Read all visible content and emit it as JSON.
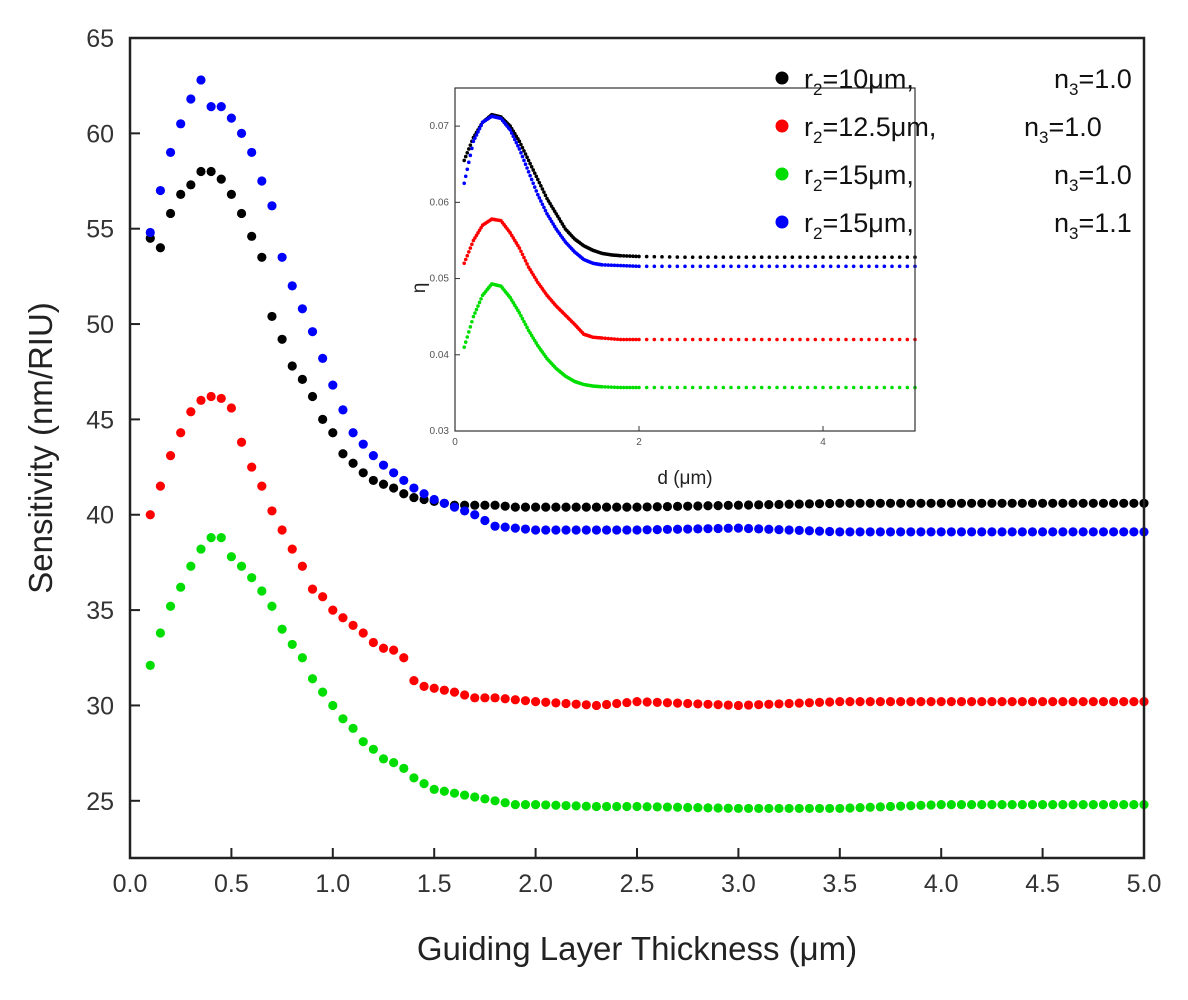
{
  "chart_data": [
    {
      "type": "scatter",
      "title": "",
      "xlabel": "Guiding Layer Thickness (μm)",
      "ylabel": "Sensitivity (nm/RIU)",
      "xlim": [
        0.0,
        5.0
      ],
      "ylim": [
        22,
        65
      ],
      "xticks": [
        "0.0",
        "0.5",
        "1.0",
        "1.5",
        "2.0",
        "2.5",
        "3.0",
        "3.5",
        "4.0",
        "4.5",
        "5.0"
      ],
      "yticks": [
        "25",
        "30",
        "35",
        "40",
        "45",
        "50",
        "55",
        "60",
        "65"
      ],
      "legend_position": "top-right",
      "series": [
        {
          "name": "r2=10μm, n3=1.0",
          "label_parts": {
            "r": "r",
            "r_sub": "2",
            "r_val": "=10μm,",
            "n": "n",
            "n_sub": "3",
            "n_val": "=1.0"
          },
          "color": "#000000",
          "x": [
            0.1,
            0.15,
            0.2,
            0.25,
            0.3,
            0.35,
            0.4,
            0.45,
            0.5,
            0.55,
            0.6,
            0.65,
            0.7,
            0.75,
            0.8,
            0.85,
            0.9,
            0.95,
            1.0,
            1.05,
            1.1,
            1.15,
            1.2,
            1.25,
            1.3,
            1.35,
            1.4,
            1.45,
            1.5,
            1.6,
            1.7,
            1.8,
            1.9,
            2.0,
            2.5,
            3.0,
            3.5,
            4.0,
            4.5,
            5.0
          ],
          "y": [
            54.5,
            54.0,
            55.8,
            56.8,
            57.3,
            58.0,
            58.0,
            57.6,
            56.8,
            55.8,
            54.6,
            53.5,
            50.4,
            49.2,
            47.8,
            47.1,
            46.2,
            45.0,
            44.3,
            43.2,
            42.7,
            42.2,
            41.8,
            41.6,
            41.4,
            41.1,
            40.9,
            40.8,
            40.7,
            40.5,
            40.5,
            40.5,
            40.4,
            40.4,
            40.4,
            40.5,
            40.6,
            40.6,
            40.6,
            40.6
          ]
        },
        {
          "name": "r2=12.5μm, n3=1.0",
          "label_parts": {
            "r": "r",
            "r_sub": "2",
            "r_val": "=12.5μm,",
            "n": "n",
            "n_sub": "3",
            "n_val": "=1.0"
          },
          "color": "#ff0000",
          "x": [
            0.1,
            0.15,
            0.2,
            0.25,
            0.3,
            0.35,
            0.4,
            0.45,
            0.5,
            0.55,
            0.6,
            0.65,
            0.7,
            0.75,
            0.8,
            0.85,
            0.9,
            0.95,
            1.0,
            1.05,
            1.1,
            1.15,
            1.2,
            1.25,
            1.3,
            1.35,
            1.4,
            1.45,
            1.5,
            1.6,
            1.7,
            1.8,
            1.9,
            2.0,
            2.3,
            2.5,
            3.0,
            3.5,
            4.0,
            4.5,
            5.0
          ],
          "y": [
            40.0,
            41.5,
            43.1,
            44.3,
            45.4,
            46.0,
            46.2,
            46.1,
            45.6,
            43.8,
            42.5,
            41.5,
            40.2,
            39.2,
            38.2,
            37.3,
            36.1,
            35.7,
            35.0,
            34.6,
            34.2,
            33.8,
            33.3,
            33.0,
            32.9,
            32.5,
            31.3,
            31.0,
            30.9,
            30.7,
            30.4,
            30.4,
            30.3,
            30.2,
            30.0,
            30.2,
            30.0,
            30.2,
            30.2,
            30.2,
            30.2
          ]
        },
        {
          "name": "r2=15μm, n3=1.0",
          "label_parts": {
            "r": "r",
            "r_sub": "2",
            "r_val": "=15μm,",
            "n": "n",
            "n_sub": "3",
            "n_val": "=1.0"
          },
          "color": "#00dd00",
          "x": [
            0.1,
            0.15,
            0.2,
            0.25,
            0.3,
            0.35,
            0.4,
            0.45,
            0.5,
            0.55,
            0.6,
            0.65,
            0.7,
            0.75,
            0.8,
            0.85,
            0.9,
            0.95,
            1.0,
            1.05,
            1.1,
            1.15,
            1.2,
            1.25,
            1.3,
            1.35,
            1.4,
            1.45,
            1.5,
            1.6,
            1.7,
            1.8,
            1.9,
            2.0,
            2.3,
            2.5,
            3.0,
            3.5,
            4.0,
            4.5,
            5.0
          ],
          "y": [
            32.1,
            33.8,
            35.2,
            36.2,
            37.3,
            38.2,
            38.8,
            38.8,
            37.8,
            37.3,
            36.7,
            36.0,
            35.2,
            34.0,
            33.2,
            32.5,
            31.4,
            30.7,
            30.0,
            29.3,
            28.8,
            28.1,
            27.7,
            27.2,
            27.0,
            26.7,
            26.2,
            25.9,
            25.6,
            25.4,
            25.2,
            25.0,
            24.8,
            24.8,
            24.7,
            24.7,
            24.6,
            24.6,
            24.8,
            24.8,
            24.8
          ]
        },
        {
          "name": "r2=15μm, n3=1.1",
          "label_parts": {
            "r": "r",
            "r_sub": "2",
            "r_val": "=15μm,",
            "n": "n",
            "n_sub": "3",
            "n_val": "=1.1"
          },
          "color": "#0000ff",
          "x": [
            0.1,
            0.15,
            0.2,
            0.25,
            0.3,
            0.35,
            0.4,
            0.45,
            0.5,
            0.55,
            0.6,
            0.65,
            0.7,
            0.75,
            0.8,
            0.85,
            0.9,
            0.95,
            1.0,
            1.05,
            1.1,
            1.15,
            1.2,
            1.25,
            1.3,
            1.35,
            1.4,
            1.45,
            1.5,
            1.6,
            1.7,
            1.8,
            1.9,
            2.0,
            2.5,
            3.0,
            3.5,
            4.0,
            4.5,
            5.0
          ],
          "y": [
            54.8,
            57.0,
            59.0,
            60.5,
            61.8,
            62.8,
            61.4,
            61.4,
            60.8,
            60.0,
            59.0,
            57.5,
            56.2,
            53.5,
            52.0,
            50.8,
            49.6,
            48.2,
            46.8,
            45.5,
            44.3,
            43.7,
            43.1,
            42.6,
            42.2,
            41.8,
            41.4,
            41.1,
            40.8,
            40.4,
            40.0,
            39.4,
            39.3,
            39.2,
            39.2,
            39.3,
            39.1,
            39.1,
            39.1,
            39.1
          ]
        }
      ]
    },
    {
      "type": "scatter",
      "title": "",
      "xlabel": "d (μm)",
      "ylabel": "η",
      "xlim": [
        0,
        5
      ],
      "ylim": [
        0.03,
        0.075
      ],
      "xticks": [
        "0",
        "2",
        "4"
      ],
      "yticks": [
        "0.03",
        "0.04",
        "0.05",
        "0.06",
        "0.07"
      ],
      "legend_position": "none",
      "series": [
        {
          "name": "r2=10μm, n3=1.0",
          "color": "#000000",
          "x": [
            0.1,
            0.2,
            0.3,
            0.4,
            0.5,
            0.6,
            0.7,
            0.8,
            0.9,
            1.0,
            1.1,
            1.2,
            1.3,
            1.4,
            1.5,
            1.6,
            1.7,
            1.8,
            2.0,
            2.5,
            3.0,
            3.5,
            4.0,
            4.5,
            5.0
          ],
          "y": [
            0.0655,
            0.0685,
            0.0705,
            0.0715,
            0.0712,
            0.07,
            0.068,
            0.0655,
            0.063,
            0.0605,
            0.0585,
            0.0565,
            0.0552,
            0.0543,
            0.0537,
            0.0533,
            0.0531,
            0.053,
            0.0529,
            0.0528,
            0.0528,
            0.0528,
            0.0528,
            0.0528,
            0.0528
          ]
        },
        {
          "name": "r2=12.5μm, n3=1.0",
          "color": "#ff0000",
          "x": [
            0.1,
            0.2,
            0.3,
            0.4,
            0.5,
            0.6,
            0.7,
            0.8,
            0.9,
            1.0,
            1.1,
            1.2,
            1.3,
            1.4,
            1.5,
            1.6,
            1.8,
            2.0,
            2.5,
            3.0,
            3.5,
            4.0,
            4.5,
            5.0
          ],
          "y": [
            0.052,
            0.055,
            0.057,
            0.0578,
            0.0576,
            0.056,
            0.054,
            0.0515,
            0.0495,
            0.0478,
            0.0464,
            0.0452,
            0.044,
            0.0427,
            0.0423,
            0.0422,
            0.042,
            0.042,
            0.042,
            0.042,
            0.042,
            0.042,
            0.042,
            0.042
          ]
        },
        {
          "name": "r2=15μm, n3=1.0",
          "color": "#00dd00",
          "x": [
            0.1,
            0.2,
            0.3,
            0.4,
            0.5,
            0.6,
            0.7,
            0.8,
            0.9,
            1.0,
            1.1,
            1.2,
            1.3,
            1.4,
            1.5,
            1.6,
            1.8,
            2.0,
            2.5,
            3.0,
            3.5,
            4.0,
            4.5,
            5.0
          ],
          "y": [
            0.041,
            0.045,
            0.0478,
            0.0493,
            0.049,
            0.0475,
            0.0455,
            0.0432,
            0.0412,
            0.0395,
            0.0382,
            0.0372,
            0.0365,
            0.0361,
            0.0359,
            0.0358,
            0.0357,
            0.0357,
            0.0357,
            0.0357,
            0.0357,
            0.0357,
            0.0357,
            0.0357
          ]
        },
        {
          "name": "r2=15μm, n3=1.1",
          "color": "#0000ff",
          "x": [
            0.1,
            0.2,
            0.3,
            0.4,
            0.5,
            0.6,
            0.7,
            0.8,
            0.9,
            1.0,
            1.1,
            1.2,
            1.3,
            1.4,
            1.5,
            1.6,
            1.8,
            2.0,
            2.5,
            3.0,
            3.5,
            4.0,
            4.5,
            5.0
          ],
          "y": [
            0.0625,
            0.068,
            0.0705,
            0.0713,
            0.071,
            0.0695,
            0.067,
            0.064,
            0.061,
            0.0585,
            0.0565,
            0.0548,
            0.0535,
            0.0525,
            0.052,
            0.0518,
            0.0517,
            0.0516,
            0.0516,
            0.0516,
            0.0516,
            0.0516,
            0.0516,
            0.0516
          ]
        }
      ]
    }
  ]
}
